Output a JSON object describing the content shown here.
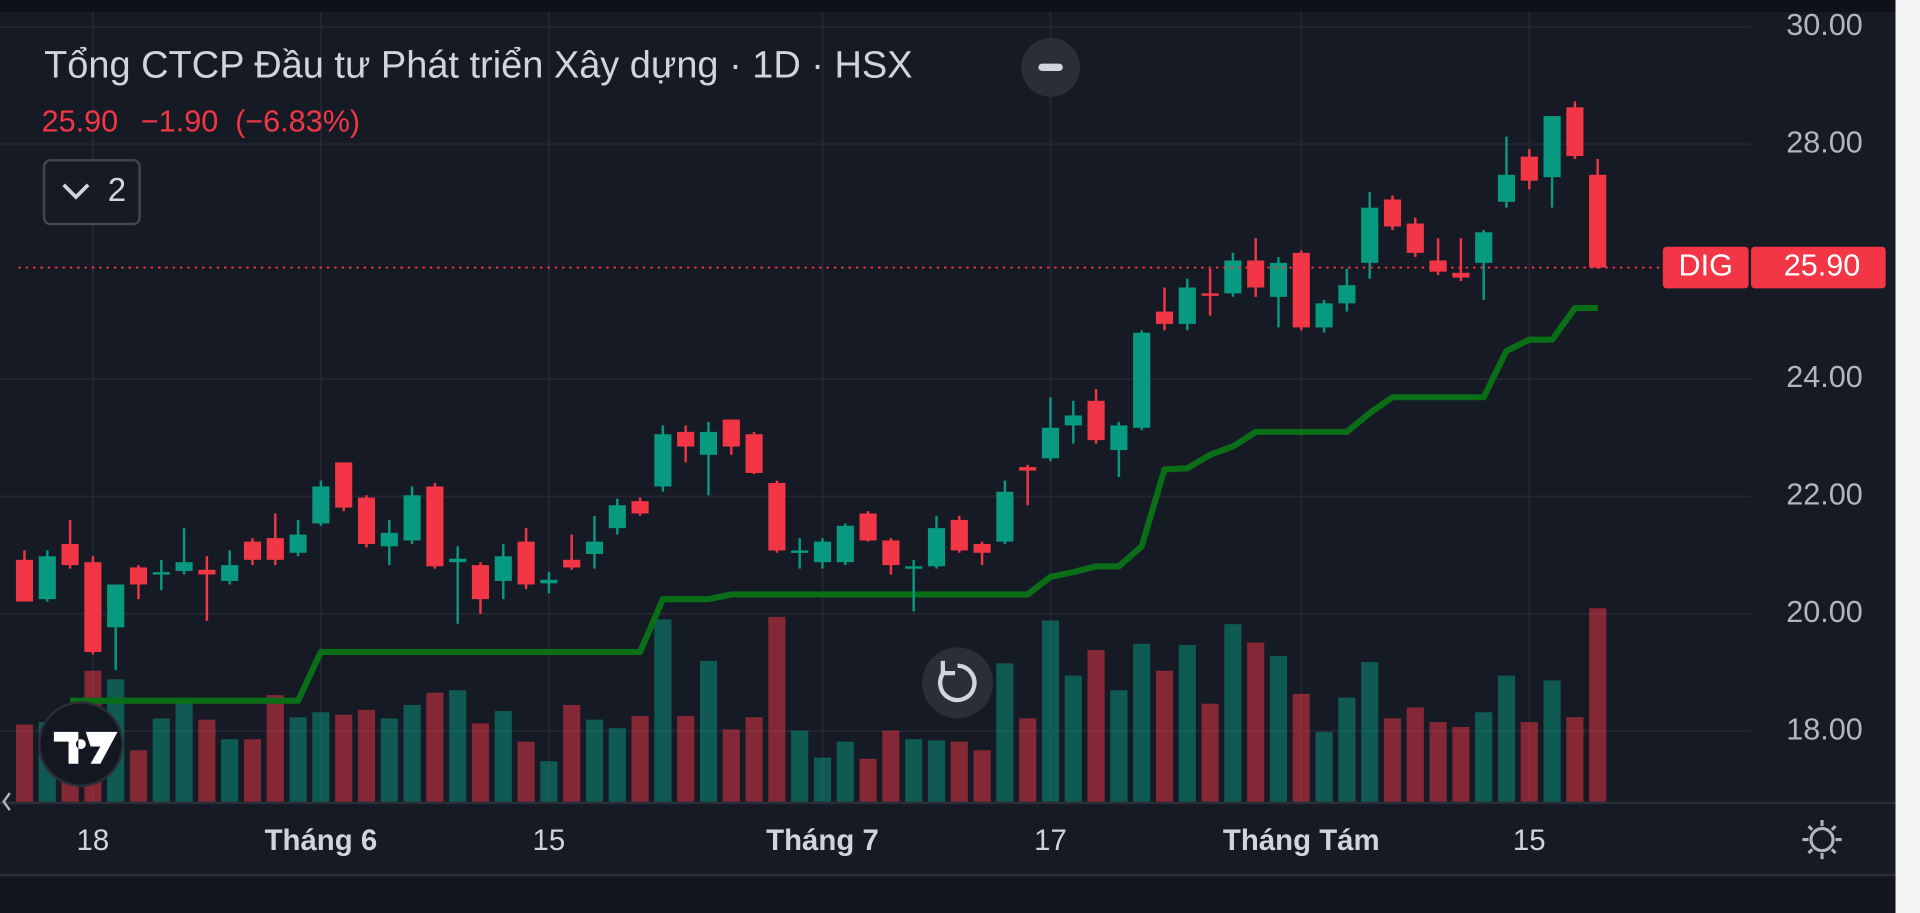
{
  "header": {
    "title": "Tổng CTCP Đầu tư Phát triển Xây dựng · 1D · HSX",
    "price": "25.90",
    "change": "−1.90",
    "change_pct": "(−6.83%)",
    "indicator_count": "2"
  },
  "chart_data": {
    "type": "candlestick",
    "categories": [
      null,
      null,
      null,
      "18",
      null,
      null,
      null,
      null,
      null,
      null,
      null,
      null,
      null,
      "Tháng 6",
      null,
      null,
      null,
      null,
      null,
      null,
      null,
      null,
      null,
      "15",
      null,
      null,
      null,
      null,
      null,
      null,
      null,
      null,
      null,
      null,
      null,
      "Tháng 7",
      null,
      null,
      null,
      null,
      null,
      null,
      null,
      null,
      null,
      "17",
      null,
      null,
      null,
      null,
      null,
      null,
      null,
      null,
      null,
      null,
      "Tháng Tám",
      null,
      null,
      null,
      null,
      null,
      null,
      null,
      null,
      null,
      "15",
      null,
      null,
      null
    ],
    "open": [
      20.92,
      20.25,
      21.19,
      20.88,
      19.77,
      20.79,
      20.67,
      20.73,
      20.75,
      20.56,
      21.23,
      21.29,
      21.04,
      21.54,
      22.58,
      21.98,
      21.15,
      21.25,
      22.17,
      20.88,
      20.83,
      20.56,
      21.23,
      20.52,
      20.92,
      21.02,
      21.46,
      21.92,
      22.17,
      23.1,
      22.71,
      23.31,
      23.06,
      22.23,
      21.04,
      20.88,
      20.88,
      21.71,
      21.25,
      20.77,
      20.81,
      21.6,
      21.19,
      21.23,
      22.5,
      22.65,
      23.21,
      23.63,
      22.79,
      23.17,
      25.15,
      24.94,
      25.46,
      25.46,
      26.02,
      25.4,
      26.15,
      24.88,
      25.29,
      25.98,
      27.06,
      26.65,
      26.02,
      25.81,
      25.98,
      27.02,
      27.79,
      27.44,
      28.63,
      27.48
    ],
    "high": [
      21.08,
      21.08,
      21.6,
      20.98,
      20.5,
      20.83,
      20.92,
      21.46,
      20.98,
      21.08,
      21.29,
      21.71,
      21.6,
      22.27,
      22.58,
      22.02,
      21.6,
      22.17,
      22.23,
      21.15,
      20.88,
      21.19,
      21.46,
      20.71,
      21.35,
      21.67,
      21.96,
      21.98,
      23.21,
      23.21,
      23.27,
      23.31,
      23.1,
      22.27,
      21.29,
      21.29,
      21.54,
      21.75,
      21.29,
      20.92,
      21.67,
      21.67,
      21.23,
      22.27,
      22.54,
      23.69,
      23.63,
      23.83,
      23.27,
      24.83,
      25.56,
      25.71,
      25.88,
      26.15,
      26.4,
      26.08,
      26.19,
      25.35,
      25.88,
      27.19,
      27.13,
      26.75,
      26.4,
      26.4,
      26.54,
      28.13,
      27.92,
      28.48,
      28.73,
      27.75
    ],
    "low": [
      20.21,
      20.21,
      20.77,
      19.31,
      19.04,
      20.25,
      20.4,
      20.67,
      19.88,
      20.5,
      20.83,
      20.83,
      20.98,
      21.5,
      21.75,
      21.13,
      20.83,
      21.19,
      20.77,
      19.83,
      20.0,
      20.25,
      20.42,
      20.35,
      20.75,
      20.77,
      21.35,
      21.67,
      22.08,
      22.58,
      22.02,
      22.71,
      22.38,
      21.04,
      20.77,
      20.77,
      20.83,
      21.23,
      20.67,
      20.04,
      20.77,
      21.04,
      20.83,
      21.19,
      21.85,
      22.6,
      22.9,
      22.9,
      22.33,
      23.13,
      24.83,
      24.83,
      25.08,
      25.4,
      25.4,
      24.88,
      24.83,
      24.79,
      25.15,
      25.71,
      26.54,
      26.08,
      25.77,
      25.67,
      25.35,
      26.92,
      27.23,
      26.92,
      27.75,
      25.88
    ],
    "close": [
      20.21,
      20.98,
      20.83,
      19.35,
      20.5,
      20.5,
      20.71,
      20.88,
      20.67,
      20.83,
      20.92,
      20.92,
      21.35,
      22.17,
      21.81,
      21.19,
      21.38,
      22.02,
      20.81,
      20.94,
      20.25,
      20.98,
      20.5,
      20.58,
      20.79,
      21.23,
      21.85,
      21.71,
      23.06,
      22.85,
      23.1,
      22.85,
      22.4,
      21.08,
      21.08,
      21.23,
      21.5,
      21.25,
      20.83,
      20.81,
      21.46,
      21.08,
      21.04,
      22.08,
      22.44,
      23.17,
      23.38,
      22.96,
      23.21,
      24.79,
      24.94,
      25.56,
      25.42,
      26.02,
      25.56,
      25.98,
      24.88,
      25.29,
      25.6,
      26.92,
      26.6,
      26.15,
      25.83,
      25.73,
      26.5,
      27.48,
      27.38,
      28.48,
      27.8,
      25.9
    ],
    "volume": [
      63,
      65,
      42,
      107,
      100,
      42,
      68,
      83,
      67,
      51,
      51,
      87,
      69,
      73,
      71,
      75,
      68,
      79,
      89,
      91,
      64,
      74,
      49,
      33,
      79,
      67,
      60,
      70,
      149,
      70,
      115,
      59,
      69,
      151,
      58,
      36,
      49,
      35,
      58,
      51,
      50,
      49,
      42,
      113,
      68,
      148,
      103,
      124,
      91,
      129,
      107,
      128,
      80,
      145,
      130,
      119,
      88,
      57,
      85,
      114,
      68,
      77,
      65,
      61,
      73,
      103,
      65,
      99,
      69,
      158
    ],
    "up_color": "#089981",
    "down_color": "#f23645",
    "indicator": {
      "color": "#0a6e17",
      "values": [
        null,
        null,
        18.52,
        18.52,
        18.52,
        18.52,
        18.52,
        18.52,
        18.52,
        18.52,
        18.52,
        18.52,
        18.52,
        19.35,
        19.35,
        19.35,
        19.35,
        19.35,
        19.35,
        19.35,
        19.35,
        19.35,
        19.35,
        19.35,
        19.35,
        19.35,
        19.35,
        19.35,
        20.25,
        20.25,
        20.25,
        20.33,
        20.33,
        20.33,
        20.33,
        20.33,
        20.33,
        20.33,
        20.33,
        20.33,
        20.33,
        20.33,
        20.33,
        20.33,
        20.33,
        20.63,
        20.71,
        20.81,
        20.81,
        21.15,
        22.46,
        22.48,
        22.71,
        22.85,
        23.1,
        23.1,
        23.1,
        23.1,
        23.1,
        23.42,
        23.69,
        23.69,
        23.69,
        23.69,
        23.69,
        24.48,
        24.67,
        24.67,
        25.21,
        25.21
      ]
    },
    "ylim": [
      16.8,
      30.25
    ],
    "yticks": [
      {
        "value": 18,
        "label": "18.00"
      },
      {
        "value": 20,
        "label": "20.00"
      },
      {
        "value": 22,
        "label": "22.00"
      },
      {
        "value": 24,
        "label": "24.00"
      },
      {
        "value": 28,
        "label": "28.00"
      },
      {
        "value": 30,
        "label": "30.00"
      }
    ],
    "grid": true,
    "price_line": {
      "symbol": "DIG",
      "value": 25.9,
      "label": "25.90"
    }
  }
}
